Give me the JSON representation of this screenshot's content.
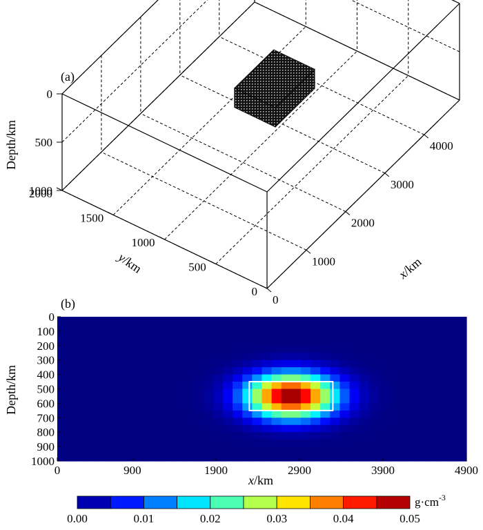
{
  "chart_data": [
    {
      "panel_label": "(a)",
      "type": "scatter",
      "zlabel": "Depth/km",
      "ylabel_italic": "y",
      "ylabel_unit": "/km",
      "xlabel_italic": "x",
      "xlabel_unit": "/km",
      "depth_ticks": [
        "0",
        "500",
        "1000"
      ],
      "y_ticks": [
        "0",
        "500",
        "1000",
        "1500",
        "2000"
      ],
      "x_ticks": [
        "0",
        "1000",
        "2000",
        "3000",
        "4000"
      ],
      "xlim": [
        0,
        4900
      ],
      "ylim": [
        0,
        2000
      ],
      "zlim": [
        0,
        1000
      ],
      "anomaly_block": {
        "x_range": [
          2300,
          3300
        ],
        "y_range": [
          800,
          1200
        ],
        "depth_range": [
          450,
          650
        ]
      }
    },
    {
      "panel_label": "(b)",
      "type": "heatmap",
      "ylabel": "Depth/km",
      "xlabel_italic": "x",
      "xlabel_unit": "/km",
      "x_ticks": [
        "0",
        "900",
        "1900",
        "2900",
        "3900",
        "4900"
      ],
      "y_ticks": [
        "0",
        "100",
        "200",
        "300",
        "400",
        "500",
        "600",
        "700",
        "800",
        "900",
        "1000"
      ],
      "xlim": [
        0,
        4900
      ],
      "ylim": [
        1000,
        0
      ],
      "anomaly_peak": {
        "x": 2800,
        "depth": 550,
        "value": 0.05
      },
      "outline_box": {
        "x_range": [
          2300,
          3300
        ],
        "depth_range": [
          450,
          650
        ]
      },
      "colorbar": {
        "unit": "g·cm",
        "unit_exp": "-3",
        "ticks": [
          "0.00",
          "0.01",
          "0.02",
          "0.03",
          "0.04",
          "0.05"
        ],
        "range": [
          0,
          0.05
        ],
        "colormap": "jet"
      }
    }
  ]
}
